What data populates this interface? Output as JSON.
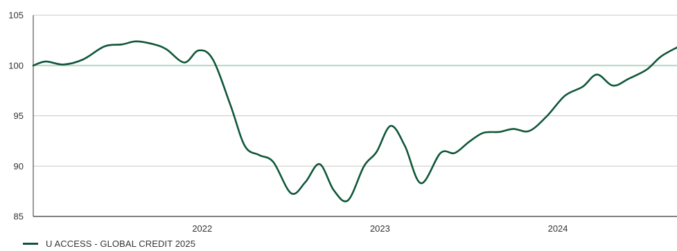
{
  "chart_data": {
    "type": "line",
    "title": "",
    "xlabel": "",
    "ylabel": "",
    "ylim": [
      85,
      105
    ],
    "yticks": [
      85,
      90,
      95,
      100,
      105
    ],
    "xlim": [
      2021.05,
      2024.67
    ],
    "xticks": [
      {
        "label": "2022",
        "value": 2022.0
      },
      {
        "label": "2023",
        "value": 2023.0
      },
      {
        "label": "2024",
        "value": 2024.0
      }
    ],
    "reference_line": 100,
    "grid": "horizontal",
    "legend_position": "bottom-left",
    "series": [
      {
        "name": "U ACCESS - GLOBAL CREDIT 2025",
        "color": "#0e5637",
        "points": [
          [
            2021.05,
            100.0
          ],
          [
            2021.12,
            100.4
          ],
          [
            2021.22,
            100.1
          ],
          [
            2021.33,
            100.6
          ],
          [
            2021.45,
            101.9
          ],
          [
            2021.55,
            102.1
          ],
          [
            2021.63,
            102.4
          ],
          [
            2021.73,
            102.1
          ],
          [
            2021.8,
            101.6
          ],
          [
            2021.9,
            100.3
          ],
          [
            2021.98,
            101.5
          ],
          [
            2022.06,
            100.6
          ],
          [
            2022.16,
            96.0
          ],
          [
            2022.24,
            92.0
          ],
          [
            2022.32,
            91.1
          ],
          [
            2022.4,
            90.4
          ],
          [
            2022.5,
            87.3
          ],
          [
            2022.58,
            88.4
          ],
          [
            2022.66,
            90.2
          ],
          [
            2022.74,
            87.6
          ],
          [
            2022.82,
            86.6
          ],
          [
            2022.91,
            90.0
          ],
          [
            2022.98,
            91.4
          ],
          [
            2023.06,
            94.0
          ],
          [
            2023.14,
            92.0
          ],
          [
            2023.23,
            88.3
          ],
          [
            2023.34,
            91.3
          ],
          [
            2023.42,
            91.3
          ],
          [
            2023.5,
            92.4
          ],
          [
            2023.58,
            93.3
          ],
          [
            2023.67,
            93.4
          ],
          [
            2023.75,
            93.7
          ],
          [
            2023.84,
            93.5
          ],
          [
            2023.94,
            95.0
          ],
          [
            2024.04,
            97.0
          ],
          [
            2024.14,
            97.9
          ],
          [
            2024.22,
            99.1
          ],
          [
            2024.31,
            98.0
          ],
          [
            2024.4,
            98.7
          ],
          [
            2024.5,
            99.6
          ],
          [
            2024.58,
            100.9
          ],
          [
            2024.67,
            101.8
          ]
        ]
      }
    ],
    "colors": {
      "axis": "#333333",
      "gridline": "#c8c8c8",
      "reference_line": "#b6d3c6"
    }
  }
}
